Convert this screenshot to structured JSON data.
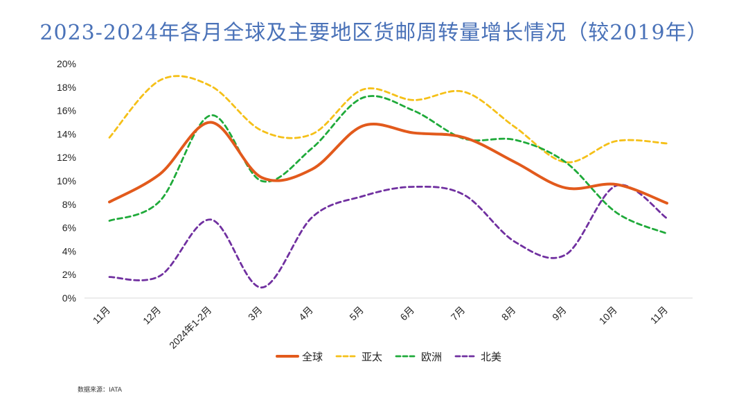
{
  "chart_data": {
    "type": "line",
    "title": "2023-2024年各月全球及主要地区货邮周转量增长情况（较2019年）",
    "categories": [
      "11月",
      "12月",
      "2024年1-2月",
      "3月",
      "4月",
      "5月",
      "6月",
      "7月",
      "8月",
      "9月",
      "10月",
      "11月"
    ],
    "ylim": [
      0,
      20
    ],
    "y_ticks": [
      "0%",
      "2%",
      "4%",
      "6%",
      "8%",
      "10%",
      "12%",
      "14%",
      "16%",
      "18%",
      "20%"
    ],
    "y_unit": "%",
    "grid": false,
    "legend_position": "bottom",
    "series": [
      {
        "name": "全球",
        "style": "solid",
        "color": "#e25a1c",
        "values": [
          8.2,
          10.6,
          15.0,
          10.3,
          11.0,
          14.7,
          14.1,
          13.7,
          11.6,
          9.4,
          9.7,
          8.1
        ]
      },
      {
        "name": "亚太",
        "style": "dashed",
        "color": "#f5c018",
        "values": [
          13.7,
          18.6,
          18.1,
          14.3,
          14.0,
          17.8,
          16.9,
          17.6,
          14.6,
          11.6,
          13.4,
          13.2
        ]
      },
      {
        "name": "欧洲",
        "style": "dashed",
        "color": "#1faa3a",
        "values": [
          6.6,
          8.3,
          15.6,
          10.0,
          12.8,
          17.1,
          16.0,
          13.6,
          13.5,
          11.6,
          7.3,
          5.5
        ]
      },
      {
        "name": "北美",
        "style": "dashed",
        "color": "#7030a0",
        "values": [
          1.8,
          1.9,
          6.7,
          0.9,
          6.9,
          8.7,
          9.5,
          8.8,
          4.8,
          3.7,
          9.6,
          6.8
        ]
      }
    ]
  },
  "source": "数据来源：IATA"
}
